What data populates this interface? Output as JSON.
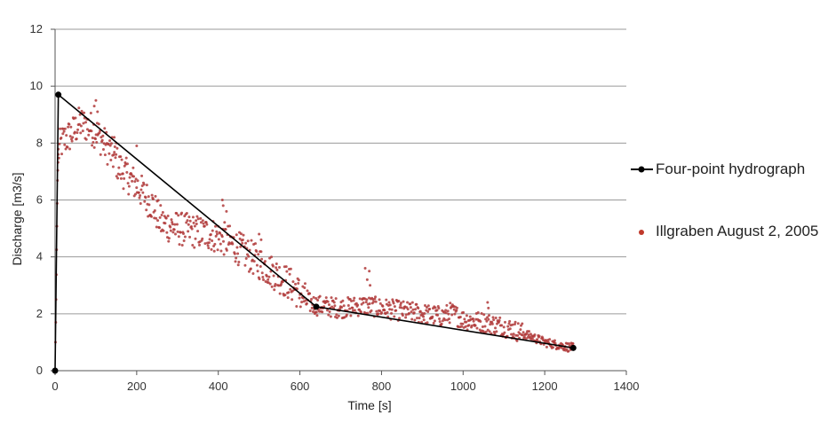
{
  "chart_data": {
    "type": "scatter",
    "xlabel": "Time [s]",
    "ylabel": "Discharge [m3/s]",
    "xlim": [
      0,
      1400
    ],
    "ylim": [
      0,
      12
    ],
    "x_ticks": [
      0,
      200,
      400,
      600,
      800,
      1000,
      1200,
      1400
    ],
    "y_ticks": [
      0,
      2,
      4,
      6,
      8,
      10,
      12
    ],
    "grid": "horizontal",
    "legend_position": "right",
    "series": [
      {
        "name": "Four-point hydrograph",
        "kind": "line-with-markers",
        "color": "#000000",
        "points": [
          [
            0,
            0
          ],
          [
            8,
            9.7
          ],
          [
            640,
            2.25
          ],
          [
            1270,
            0.8
          ]
        ]
      },
      {
        "name": "Illgraben August 2, 2005",
        "kind": "scatter",
        "color": "#b03a3a",
        "description_note": "",
        "trend": [
          [
            0,
            0
          ],
          [
            2,
            2.0
          ],
          [
            4,
            4.5
          ],
          [
            6,
            6.8
          ],
          [
            8,
            7.6
          ],
          [
            12,
            7.9
          ],
          [
            20,
            8.1
          ],
          [
            40,
            8.3
          ],
          [
            60,
            8.7
          ],
          [
            80,
            8.6
          ],
          [
            100,
            8.4
          ],
          [
            120,
            8.0
          ],
          [
            140,
            7.6
          ],
          [
            160,
            7.1
          ],
          [
            200,
            6.5
          ],
          [
            240,
            5.8
          ],
          [
            260,
            5.2
          ],
          [
            300,
            5.0
          ],
          [
            340,
            4.9
          ],
          [
            380,
            4.8
          ],
          [
            420,
            4.6
          ],
          [
            460,
            4.2
          ],
          [
            500,
            3.8
          ],
          [
            540,
            3.4
          ],
          [
            580,
            3.0
          ],
          [
            600,
            2.7
          ],
          [
            620,
            2.4
          ],
          [
            640,
            2.3
          ],
          [
            700,
            2.2
          ],
          [
            760,
            2.3
          ],
          [
            800,
            2.2
          ],
          [
            850,
            2.1
          ],
          [
            900,
            2.0
          ],
          [
            950,
            1.9
          ],
          [
            970,
            2.05
          ],
          [
            1000,
            1.8
          ],
          [
            1050,
            1.7
          ],
          [
            1100,
            1.55
          ],
          [
            1150,
            1.3
          ],
          [
            1200,
            1.0
          ],
          [
            1250,
            0.85
          ],
          [
            1270,
            0.8
          ]
        ],
        "bursts": [
          [
            100,
            9.5
          ],
          [
            104,
            9.1
          ],
          [
            96,
            9.3
          ],
          [
            145,
            8.2
          ],
          [
            150,
            8.0
          ],
          [
            200,
            7.9
          ],
          [
            410,
            6.0
          ],
          [
            412,
            5.8
          ],
          [
            420,
            5.6
          ],
          [
            500,
            4.8
          ],
          [
            505,
            4.6
          ],
          [
            760,
            3.6
          ],
          [
            770,
            3.5
          ],
          [
            765,
            3.2
          ],
          [
            772,
            3.0
          ],
          [
            1060,
            2.4
          ],
          [
            1062,
            2.2
          ]
        ]
      }
    ]
  }
}
